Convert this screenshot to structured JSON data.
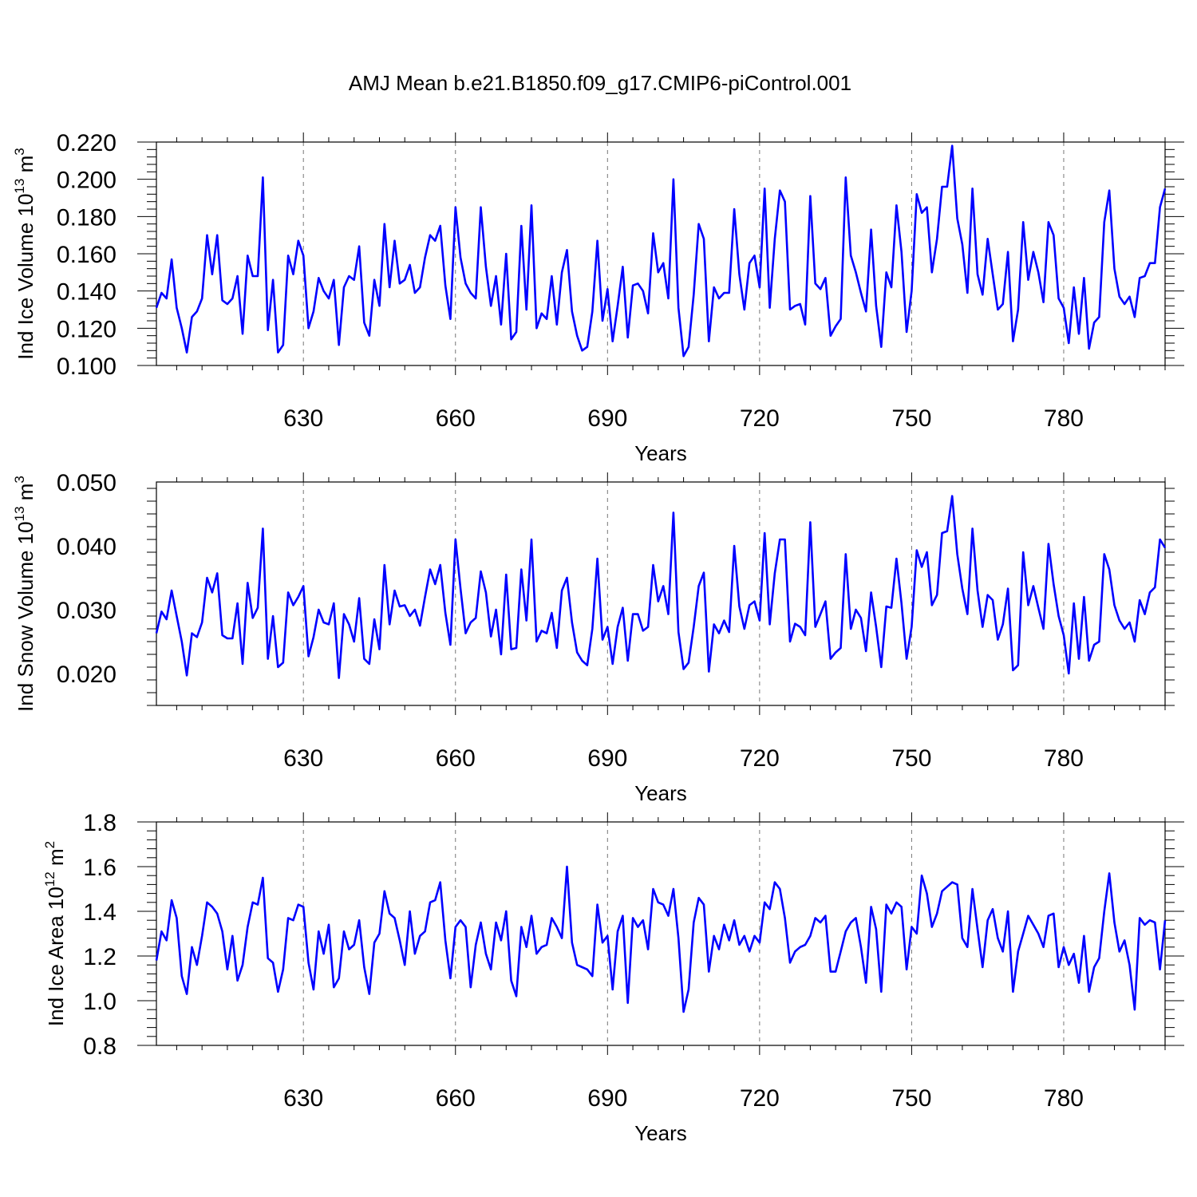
{
  "title": "AMJ Mean b.e21.B1850.f09_g17.CMIP6-piControl.001",
  "line_color": "#0000ff",
  "grid_color": "#777777",
  "chart_data": [
    {
      "type": "line",
      "ylabel_text": "Ind Ice Volume 10",
      "ylabel_exp": "13",
      "ylabel_unit": "m",
      "ylabel_unit_exp": "3",
      "xlabel": "Years",
      "xlim": [
        601,
        800
      ],
      "ylim": [
        0.1,
        0.22
      ],
      "xticks": [
        630,
        660,
        690,
        720,
        750,
        780
      ],
      "yticks": [
        "0.100",
        "0.120",
        "0.140",
        "0.160",
        "0.180",
        "0.200",
        "0.220"
      ],
      "grid": "vertical dashed at major x ticks",
      "series": [
        {
          "x0": 601,
          "values": [
            0.131,
            0.139,
            0.136,
            0.157,
            0.131,
            0.12,
            0.107,
            0.126,
            0.129,
            0.136,
            0.17,
            0.149,
            0.17,
            0.135,
            0.133,
            0.136,
            0.148,
            0.117,
            0.159,
            0.148,
            0.148,
            0.201,
            0.119,
            0.146,
            0.107,
            0.111,
            0.159,
            0.149,
            0.167,
            0.159,
            0.12,
            0.129,
            0.147,
            0.14,
            0.136,
            0.146,
            0.111,
            0.142,
            0.148,
            0.146,
            0.164,
            0.123,
            0.116,
            0.146,
            0.132,
            0.176,
            0.142,
            0.167,
            0.144,
            0.146,
            0.154,
            0.139,
            0.142,
            0.158,
            0.17,
            0.167,
            0.175,
            0.143,
            0.125,
            0.185,
            0.158,
            0.144,
            0.139,
            0.136,
            0.185,
            0.153,
            0.132,
            0.148,
            0.122,
            0.16,
            0.114,
            0.118,
            0.175,
            0.13,
            0.186,
            0.12,
            0.128,
            0.125,
            0.148,
            0.122,
            0.15,
            0.162,
            0.129,
            0.116,
            0.108,
            0.11,
            0.129,
            0.167,
            0.124,
            0.141,
            0.113,
            0.132,
            0.153,
            0.115,
            0.143,
            0.144,
            0.14,
            0.128,
            0.171,
            0.15,
            0.155,
            0.136,
            0.2,
            0.131,
            0.105,
            0.11,
            0.138,
            0.176,
            0.168,
            0.113,
            0.142,
            0.136,
            0.139,
            0.139,
            0.184,
            0.149,
            0.13,
            0.155,
            0.159,
            0.142,
            0.195,
            0.131,
            0.168,
            0.194,
            0.188,
            0.13,
            0.132,
            0.133,
            0.122,
            0.191,
            0.144,
            0.141,
            0.147,
            0.116,
            0.121,
            0.125,
            0.201,
            0.159,
            0.15,
            0.139,
            0.129,
            0.173,
            0.132,
            0.11,
            0.15,
            0.142,
            0.186,
            0.161,
            0.118,
            0.14,
            0.192,
            0.182,
            0.185,
            0.15,
            0.168,
            0.196,
            0.196,
            0.218,
            0.179,
            0.165,
            0.139,
            0.195,
            0.149,
            0.138,
            0.168,
            0.149,
            0.13,
            0.133,
            0.161,
            0.113,
            0.13,
            0.177,
            0.146,
            0.161,
            0.15,
            0.134,
            0.177,
            0.17,
            0.136,
            0.131,
            0.112,
            0.142,
            0.117,
            0.147,
            0.109,
            0.123,
            0.126,
            0.177,
            0.194,
            0.152,
            0.137,
            0.133,
            0.137,
            0.126,
            0.147,
            0.148,
            0.155,
            0.155,
            0.185,
            0.195
          ]
        }
      ]
    },
    {
      "type": "line",
      "ylabel_text": "Ind Snow Volume 10",
      "ylabel_exp": "13",
      "ylabel_unit": "m",
      "ylabel_unit_exp": "3",
      "xlabel": "Years",
      "xlim": [
        601,
        800
      ],
      "ylim": [
        0.015,
        0.05
      ],
      "xticks": [
        630,
        660,
        690,
        720,
        750,
        780
      ],
      "yticks": [
        "0.020",
        "0.030",
        "0.040",
        "0.050"
      ],
      "grid": "vertical dashed at major x ticks",
      "series": [
        {
          "x0": 601,
          "values": [
            0.0263,
            0.0297,
            0.0285,
            0.033,
            0.029,
            0.025,
            0.0197,
            0.0263,
            0.0257,
            0.028,
            0.035,
            0.0327,
            0.0357,
            0.026,
            0.0255,
            0.0255,
            0.031,
            0.0215,
            0.0342,
            0.0287,
            0.0303,
            0.0427,
            0.0223,
            0.029,
            0.021,
            0.0217,
            0.0327,
            0.0307,
            0.032,
            0.0337,
            0.0227,
            0.0257,
            0.03,
            0.028,
            0.0277,
            0.031,
            0.0193,
            0.0293,
            0.0277,
            0.025,
            0.0318,
            0.0223,
            0.0215,
            0.0285,
            0.0238,
            0.037,
            0.0277,
            0.033,
            0.0305,
            0.0307,
            0.029,
            0.03,
            0.0275,
            0.032,
            0.0363,
            0.034,
            0.037,
            0.0295,
            0.0245,
            0.041,
            0.0333,
            0.0263,
            0.028,
            0.0287,
            0.036,
            0.0327,
            0.0258,
            0.03,
            0.023,
            0.0355,
            0.0238,
            0.024,
            0.0363,
            0.0283,
            0.041,
            0.025,
            0.0267,
            0.0263,
            0.0295,
            0.024,
            0.033,
            0.035,
            0.028,
            0.0233,
            0.022,
            0.0213,
            0.027,
            0.038,
            0.0253,
            0.0273,
            0.0215,
            0.0273,
            0.0303,
            0.022,
            0.0293,
            0.0293,
            0.0267,
            0.0273,
            0.037,
            0.0313,
            0.0337,
            0.0293,
            0.0452,
            0.0265,
            0.0207,
            0.0217,
            0.0273,
            0.0337,
            0.0358,
            0.0203,
            0.0277,
            0.0263,
            0.0283,
            0.0265,
            0.04,
            0.0305,
            0.027,
            0.0307,
            0.0313,
            0.0283,
            0.042,
            0.0277,
            0.0357,
            0.041,
            0.041,
            0.025,
            0.0278,
            0.0273,
            0.026,
            0.0437,
            0.0273,
            0.0293,
            0.0313,
            0.0223,
            0.0233,
            0.024,
            0.0387,
            0.027,
            0.03,
            0.0287,
            0.0235,
            0.0327,
            0.0273,
            0.021,
            0.0305,
            0.0303,
            0.038,
            0.031,
            0.0223,
            0.0273,
            0.0393,
            0.0367,
            0.039,
            0.0307,
            0.0323,
            0.042,
            0.0423,
            0.0478,
            0.0387,
            0.0333,
            0.0293,
            0.0427,
            0.033,
            0.0273,
            0.0323,
            0.0315,
            0.0253,
            0.0277,
            0.0333,
            0.0205,
            0.0213,
            0.039,
            0.0307,
            0.0337,
            0.0303,
            0.027,
            0.0403,
            0.034,
            0.029,
            0.026,
            0.02,
            0.031,
            0.0223,
            0.032,
            0.022,
            0.0245,
            0.025,
            0.0387,
            0.0363,
            0.0307,
            0.0283,
            0.027,
            0.028,
            0.025,
            0.0315,
            0.0293,
            0.0327,
            0.0335,
            0.041,
            0.0397
          ]
        }
      ]
    },
    {
      "type": "line",
      "ylabel_text": "Ind Ice Area 10",
      "ylabel_exp": "12",
      "ylabel_unit": "m",
      "ylabel_unit_exp": "2",
      "xlabel": "Years",
      "xlim": [
        601,
        800
      ],
      "ylim": [
        0.8,
        1.8
      ],
      "xticks": [
        630,
        660,
        690,
        720,
        750,
        780
      ],
      "yticks": [
        "0.8",
        "1.0",
        "1.2",
        "1.4",
        "1.6",
        "1.8"
      ],
      "grid": "vertical dashed at major x ticks",
      "series": [
        {
          "x0": 601,
          "values": [
            1.18,
            1.31,
            1.27,
            1.45,
            1.37,
            1.11,
            1.03,
            1.24,
            1.16,
            1.29,
            1.44,
            1.42,
            1.39,
            1.31,
            1.14,
            1.29,
            1.09,
            1.16,
            1.33,
            1.44,
            1.43,
            1.55,
            1.19,
            1.17,
            1.04,
            1.14,
            1.37,
            1.36,
            1.43,
            1.42,
            1.17,
            1.05,
            1.31,
            1.21,
            1.34,
            1.06,
            1.1,
            1.31,
            1.23,
            1.25,
            1.36,
            1.15,
            1.03,
            1.26,
            1.3,
            1.49,
            1.39,
            1.37,
            1.27,
            1.16,
            1.4,
            1.21,
            1.29,
            1.31,
            1.44,
            1.45,
            1.53,
            1.27,
            1.1,
            1.33,
            1.36,
            1.33,
            1.06,
            1.25,
            1.35,
            1.21,
            1.14,
            1.35,
            1.27,
            1.4,
            1.09,
            1.02,
            1.33,
            1.24,
            1.38,
            1.21,
            1.24,
            1.25,
            1.37,
            1.33,
            1.28,
            1.6,
            1.26,
            1.16,
            1.15,
            1.14,
            1.11,
            1.43,
            1.26,
            1.29,
            1.05,
            1.31,
            1.38,
            0.99,
            1.37,
            1.33,
            1.36,
            1.23,
            1.5,
            1.44,
            1.43,
            1.38,
            1.5,
            1.28,
            0.95,
            1.05,
            1.35,
            1.46,
            1.43,
            1.13,
            1.29,
            1.23,
            1.34,
            1.27,
            1.36,
            1.25,
            1.29,
            1.22,
            1.29,
            1.26,
            1.44,
            1.41,
            1.53,
            1.5,
            1.37,
            1.17,
            1.22,
            1.24,
            1.25,
            1.29,
            1.37,
            1.35,
            1.38,
            1.13,
            1.13,
            1.22,
            1.31,
            1.35,
            1.37,
            1.24,
            1.08,
            1.42,
            1.32,
            1.04,
            1.43,
            1.39,
            1.44,
            1.42,
            1.14,
            1.33,
            1.3,
            1.56,
            1.48,
            1.33,
            1.39,
            1.49,
            1.51,
            1.53,
            1.52,
            1.28,
            1.24,
            1.5,
            1.32,
            1.15,
            1.36,
            1.41,
            1.28,
            1.22,
            1.4,
            1.04,
            1.22,
            1.3,
            1.38,
            1.34,
            1.3,
            1.24,
            1.38,
            1.39,
            1.15,
            1.24,
            1.16,
            1.21,
            1.08,
            1.29,
            1.04,
            1.15,
            1.19,
            1.4,
            1.57,
            1.35,
            1.22,
            1.27,
            1.16,
            0.96,
            1.37,
            1.34,
            1.36,
            1.35,
            1.14,
            1.36
          ]
        }
      ]
    }
  ]
}
